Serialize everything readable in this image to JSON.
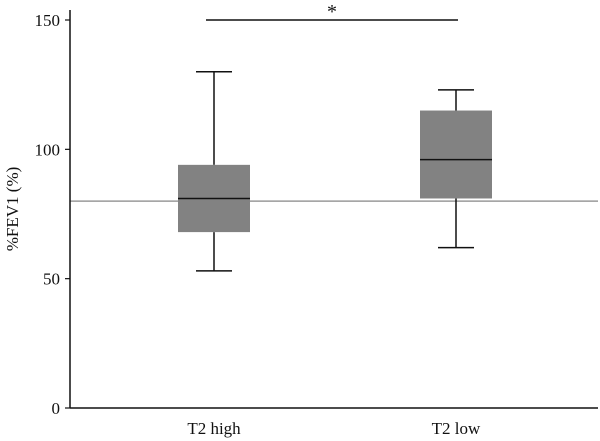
{
  "chart_data": {
    "type": "box",
    "title": "",
    "xlabel": "",
    "ylabel": "%FEV1 (%)",
    "ylim": [
      0,
      150
    ],
    "yticks": [
      0,
      50,
      100,
      150
    ],
    "grid": false,
    "reference_line": 80,
    "categories": [
      "T2 high",
      "T2 low"
    ],
    "boxes": [
      {
        "category": "T2 high",
        "whisker_low": 53,
        "q1": 68,
        "median": 81,
        "q3": 94,
        "whisker_high": 130
      },
      {
        "category": "T2 low",
        "whisker_low": 62,
        "q1": 81,
        "median": 96,
        "q3": 115,
        "whisker_high": 123
      }
    ],
    "significance": {
      "label": "*",
      "between": [
        "T2 high",
        "T2 low"
      ],
      "y": 150
    },
    "colors": {
      "box_fill": "#828282",
      "lines": "#111111",
      "reference_line": "#9a9a9a"
    }
  }
}
